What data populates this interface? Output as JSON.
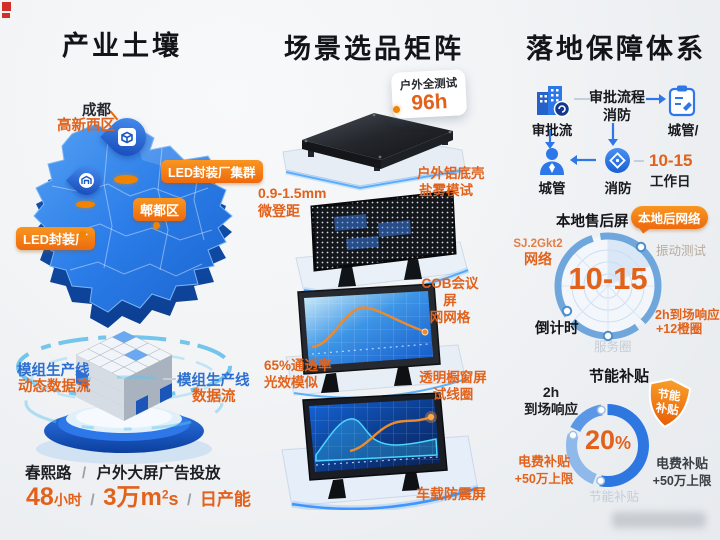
{
  "industry": {
    "title": "产业土壤",
    "map": {
      "city": "成都",
      "district": "高新西区",
      "cluster_pill": "LED封装厂集群",
      "district_pill": "郫都区",
      "factory_pill": "LED封装厂"
    },
    "production": {
      "left_line1": "模组生产线",
      "left_line2": "动态数据流",
      "right_line1": "模组生产线",
      "right_line2": "数据流"
    },
    "stats": {
      "road": "春熙路",
      "slash": "/",
      "line1_right": "户外大屏广告投放",
      "hours_value": "48",
      "hours_unit": "小时",
      "area_value": "3万m",
      "area_sup": "2",
      "area_suffix": "s",
      "capacity": "日产能"
    }
  },
  "matrix": {
    "title": "场景选品矩阵",
    "test_badge": {
      "label": "户外全测试",
      "value": "96h"
    },
    "panel1": {
      "line1": "户外铝底壳",
      "line2": "盐雾模试"
    },
    "pitch": {
      "line1": "0.9-1.5mm",
      "line2": "微登距"
    },
    "panel2": {
      "line1": "COB会议屏",
      "line2": "网网格"
    },
    "panel3_left": {
      "line1": "65%通透率",
      "line2": "光效模似"
    },
    "panel3_right": {
      "line1": "透明橱窗屏",
      "line2": "试线圈"
    },
    "panel4": {
      "line1": "车载防震屏"
    }
  },
  "guarantee": {
    "title": "落地保障体系",
    "flow": {
      "approval": "审批流",
      "process_line1": "审批流程",
      "process_line2": "消防",
      "chengguan_slash": "城管/",
      "chengguan": "城管",
      "fire": "消防",
      "days": "10-15",
      "days_unit": "工作日"
    },
    "radar": {
      "title": "本地售后屏",
      "badge": "本地后网络",
      "net_line1": "SJ.2Gkt2",
      "net_line2": "网络",
      "vibration": "振动测试",
      "value": "10-15",
      "countdown": "倒计时",
      "resp_line1": "2h到场响应",
      "resp_line2": "+12橙圈",
      "bottom": "服务圈"
    },
    "subsidy": {
      "title": "节能补贴",
      "resp_line1": "2h",
      "resp_line2": "到场响应",
      "shield_line1": "节能",
      "shield_line2": "补贴",
      "value": "20",
      "percent": "%",
      "left_line1": "电费补贴",
      "left_line2": "+50万上限",
      "right_line1": "电费补贴",
      "right_line2": "+50万上限",
      "bottom": "节能补贴"
    }
  },
  "chart_data": [
    {
      "type": "pie",
      "title": "本地售后屏",
      "values": [
        10,
        15
      ],
      "center_label": "10-15",
      "note": "radar dial"
    },
    {
      "type": "pie",
      "title": "节能补贴",
      "values": [
        20,
        80
      ],
      "center_label": "20%",
      "note": "donut ring"
    }
  ],
  "colors": {
    "orange": "#e2621b",
    "pill_orange": "#f08300",
    "blue": "#2e77e8",
    "dark": "#15181c"
  }
}
